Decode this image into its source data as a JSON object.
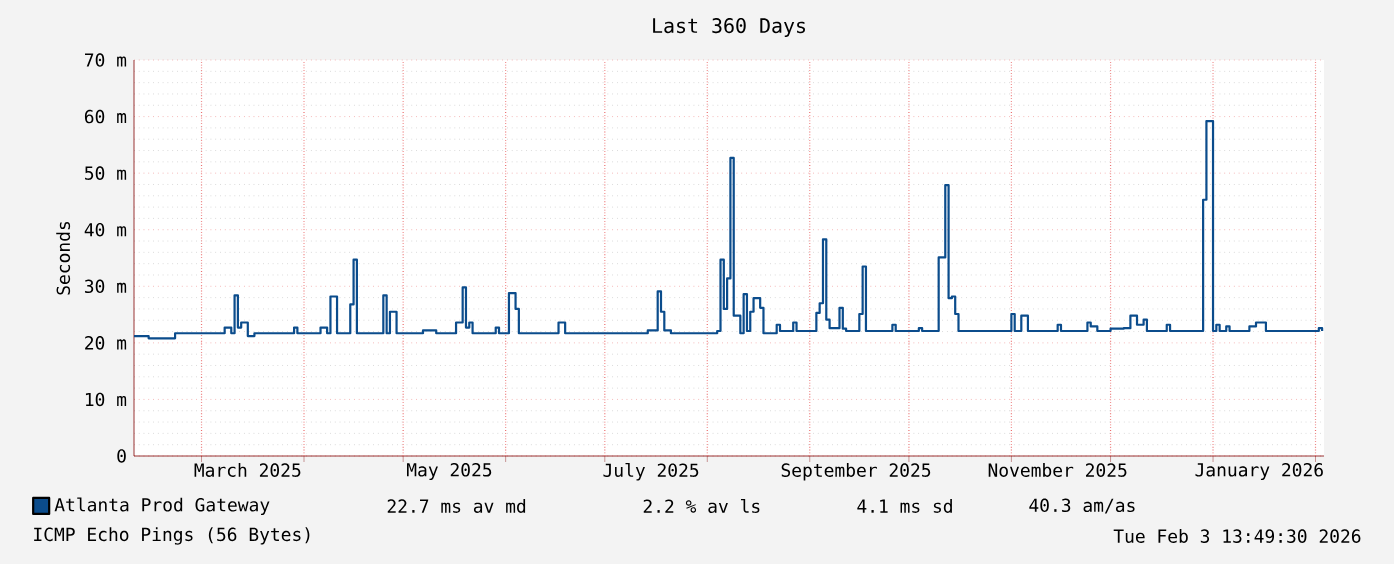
{
  "chart_data": {
    "type": "step",
    "title": "Last 360 Days",
    "ylabel": "Seconds",
    "xlim": [
      "2025-02-08T13:49",
      "2026-02-03T13:49"
    ],
    "xticks": [
      {
        "value": "2025-03-01",
        "label": null
      },
      {
        "value": "2025-03-15",
        "label": "March 2025"
      },
      {
        "value": "2025-04-01",
        "label": null
      },
      {
        "value": "2025-05-01",
        "label": null
      },
      {
        "value": "2025-05-15",
        "label": "May 2025"
      },
      {
        "value": "2025-06-01",
        "label": null
      },
      {
        "value": "2025-07-01",
        "label": null
      },
      {
        "value": "2025-07-15",
        "label": "July 2025"
      },
      {
        "value": "2025-08-01",
        "label": null
      },
      {
        "value": "2025-09-01",
        "label": null
      },
      {
        "value": "2025-09-15",
        "label": "September 2025"
      },
      {
        "value": "2025-10-01",
        "label": null
      },
      {
        "value": "2025-11-01",
        "label": null
      },
      {
        "value": "2025-11-15",
        "label": "November 2025"
      },
      {
        "value": "2025-12-01",
        "label": null
      },
      {
        "value": "2026-01-01",
        "label": null
      },
      {
        "value": "2026-01-15",
        "label": "January 2026"
      },
      {
        "value": "2026-02-01",
        "label": null
      }
    ],
    "ylim": [
      0,
      70
    ],
    "yticks": [
      {
        "value": 0,
        "label": "0"
      },
      {
        "value": 10,
        "label": "10 m"
      },
      {
        "value": 20,
        "label": "20 m"
      },
      {
        "value": 30,
        "label": "30 m"
      },
      {
        "value": 40,
        "label": "40 m"
      },
      {
        "value": 50,
        "label": "50 m"
      },
      {
        "value": 60,
        "label": "60 m"
      },
      {
        "value": 70,
        "label": "70 m"
      }
    ],
    "grid": true,
    "legend": "bottom",
    "marker": "none",
    "line_style": "solid",
    "series": [
      {
        "name": "Atlanta Prod Gateway",
        "color": "#0b4c8c",
        "x": [
          "2025-02-08T13:49",
          "2025-02-13",
          "2025-02-21",
          "2025-03-08",
          "2025-03-10",
          "2025-03-11",
          "2025-03-12",
          "2025-03-13",
          "2025-03-15",
          "2025-03-17",
          "2025-03-29",
          "2025-03-30",
          "2025-04-06",
          "2025-04-08",
          "2025-04-09",
          "2025-04-11",
          "2025-04-15",
          "2025-04-16",
          "2025-04-17",
          "2025-04-25",
          "2025-04-26",
          "2025-04-27",
          "2025-04-29",
          "2025-05-07",
          "2025-05-11",
          "2025-05-17",
          "2025-05-19",
          "2025-05-20",
          "2025-05-21",
          "2025-05-22",
          "2025-05-29",
          "2025-05-30",
          "2025-06-02",
          "2025-06-04",
          "2025-06-05",
          "2025-06-17",
          "2025-06-19",
          "2025-07-14",
          "2025-07-17",
          "2025-07-18",
          "2025-07-19",
          "2025-07-21",
          "2025-08-04",
          "2025-08-05",
          "2025-08-06",
          "2025-08-07",
          "2025-08-08",
          "2025-08-09",
          "2025-08-11",
          "2025-08-12",
          "2025-08-13",
          "2025-08-14",
          "2025-08-15",
          "2025-08-17",
          "2025-08-18",
          "2025-08-22",
          "2025-08-23",
          "2025-08-27",
          "2025-08-28",
          "2025-09-03",
          "2025-09-04",
          "2025-09-05",
          "2025-09-06",
          "2025-09-07",
          "2025-09-10",
          "2025-09-11",
          "2025-09-12",
          "2025-09-16",
          "2025-09-17",
          "2025-09-18",
          "2025-09-26",
          "2025-09-27",
          "2025-10-04",
          "2025-10-05",
          "2025-10-10",
          "2025-10-12",
          "2025-10-13",
          "2025-10-14",
          "2025-10-15",
          "2025-10-16",
          "2025-11-01",
          "2025-11-02",
          "2025-11-04",
          "2025-11-06",
          "2025-11-15",
          "2025-11-16",
          "2025-11-24",
          "2025-11-25",
          "2025-11-27",
          "2025-12-01",
          "2025-12-05",
          "2025-12-07",
          "2025-12-09",
          "2025-12-11",
          "2025-12-12",
          "2025-12-18",
          "2025-12-19",
          "2025-12-29",
          "2025-12-30",
          "2026-01-01",
          "2026-01-02",
          "2026-01-03",
          "2026-01-05",
          "2026-01-06",
          "2026-01-12",
          "2026-01-14",
          "2026-01-17",
          "2026-02-02",
          "2026-02-03"
        ],
        "values": [
          21.2,
          20.8,
          21.7,
          22.7,
          21.7,
          28.4,
          22.7,
          23.6,
          21.2,
          21.7,
          22.7,
          21.7,
          22.7,
          21.7,
          28.2,
          21.7,
          26.8,
          34.7,
          21.7,
          28.4,
          21.7,
          25.5,
          21.7,
          22.2,
          21.7,
          23.6,
          29.8,
          22.7,
          23.6,
          21.7,
          22.7,
          21.7,
          28.8,
          26.0,
          21.7,
          23.6,
          21.7,
          22.2,
          29.1,
          25.5,
          22.2,
          21.7,
          22.1,
          34.7,
          26.0,
          31.4,
          52.7,
          24.8,
          21.7,
          28.6,
          22.1,
          25.5,
          27.9,
          26.2,
          21.7,
          23.2,
          22.1,
          23.6,
          22.1,
          25.3,
          27.0,
          38.3,
          24.1,
          22.6,
          26.2,
          22.5,
          22.1,
          25.1,
          33.5,
          22.1,
          23.2,
          22.1,
          22.6,
          22.1,
          35.1,
          47.9,
          27.9,
          28.2,
          25.1,
          22.1,
          25.1,
          22.1,
          24.8,
          22.1,
          23.2,
          22.1,
          23.6,
          22.9,
          22.1,
          22.5,
          22.6,
          24.8,
          23.2,
          24.1,
          22.1,
          23.2,
          22.1,
          45.3,
          59.2,
          22.1,
          23.2,
          22.1,
          22.9,
          22.1,
          22.9,
          23.6,
          22.1,
          22.6,
          22.1
        ]
      }
    ],
    "annotations": [
      "22.7 ms av md",
      "2.2 % av ls",
      "4.1 ms sd",
      "40.3   am/as",
      "ICMP Echo Pings (56 Bytes)",
      "Tue Feb  3 13:49:30 2026"
    ]
  }
}
